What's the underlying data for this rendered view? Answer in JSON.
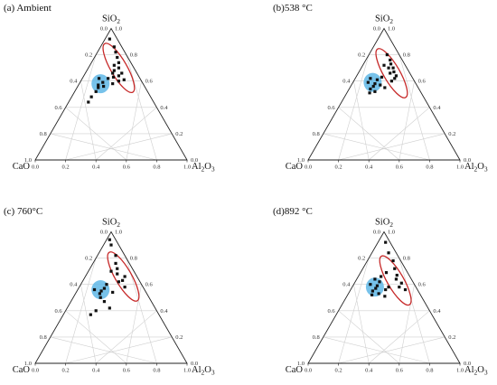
{
  "chart_data": [
    {
      "type": "scatter",
      "subtype": "ternary",
      "panel_label": "(a) Ambient",
      "axes": {
        "top": "SiO",
        "top_sub": "2",
        "left": "CaO",
        "left_sub": "",
        "right": "Al",
        "right_sub": "2",
        "right_mid": "O",
        "right_sub2": "3"
      },
      "tick_labels": [
        "0.0",
        "0.2",
        "0.4",
        "0.6",
        "0.8",
        "1.0"
      ],
      "points": [
        {
          "sio2": 0.92,
          "cao": 0.05,
          "al2o3": 0.03
        },
        {
          "sio2": 0.86,
          "cao": 0.05,
          "al2o3": 0.09
        },
        {
          "sio2": 0.82,
          "cao": 0.06,
          "al2o3": 0.12
        },
        {
          "sio2": 0.78,
          "cao": 0.07,
          "al2o3": 0.15
        },
        {
          "sio2": 0.74,
          "cao": 0.08,
          "al2o3": 0.18
        },
        {
          "sio2": 0.7,
          "cao": 0.1,
          "al2o3": 0.2
        },
        {
          "sio2": 0.66,
          "cao": 0.1,
          "al2o3": 0.24
        },
        {
          "sio2": 0.64,
          "cao": 0.13,
          "al2o3": 0.23
        },
        {
          "sio2": 0.68,
          "cao": 0.14,
          "al2o3": 0.18
        },
        {
          "sio2": 0.72,
          "cao": 0.12,
          "al2o3": 0.16
        },
        {
          "sio2": 0.61,
          "cao": 0.11,
          "al2o3": 0.28
        },
        {
          "sio2": 0.6,
          "cao": 0.15,
          "al2o3": 0.25
        },
        {
          "sio2": 0.62,
          "cao": 0.21,
          "al2o3": 0.17
        },
        {
          "sio2": 0.59,
          "cao": 0.26,
          "al2o3": 0.15
        },
        {
          "sio2": 0.56,
          "cao": 0.27,
          "al2o3": 0.17
        },
        {
          "sio2": 0.57,
          "cao": 0.3,
          "al2o3": 0.13
        },
        {
          "sio2": 0.62,
          "cao": 0.27,
          "al2o3": 0.11
        },
        {
          "sio2": 0.55,
          "cao": 0.31,
          "al2o3": 0.14
        },
        {
          "sio2": 0.52,
          "cao": 0.34,
          "al2o3": 0.14
        },
        {
          "sio2": 0.48,
          "cao": 0.39,
          "al2o3": 0.13
        },
        {
          "sio2": 0.44,
          "cao": 0.43,
          "al2o3": 0.13
        },
        {
          "sio2": 0.58,
          "cao": 0.2,
          "al2o3": 0.22
        },
        {
          "sio2": 0.63,
          "cao": 0.17,
          "al2o3": 0.2
        },
        {
          "sio2": 0.66,
          "cao": 0.16,
          "al2o3": 0.18
        }
      ],
      "blue_region": {
        "sio2": 0.58,
        "cao": 0.28,
        "al2o3": 0.14
      },
      "red_region": {
        "sio2": 0.7,
        "cao": 0.1,
        "al2o3": 0.2
      }
    },
    {
      "type": "scatter",
      "subtype": "ternary",
      "panel_label": "(b)538 °C",
      "axes": {
        "top": "SiO",
        "top_sub": "2",
        "left": "CaO",
        "left_sub": "",
        "right": "Al",
        "right_sub": "2",
        "right_mid": "O",
        "right_sub2": "3"
      },
      "tick_labels": [
        "0.0",
        "0.2",
        "0.4",
        "0.6",
        "0.8",
        "1.0"
      ],
      "points": [
        {
          "sio2": 0.8,
          "cao": 0.08,
          "al2o3": 0.12
        },
        {
          "sio2": 0.76,
          "cao": 0.08,
          "al2o3": 0.16
        },
        {
          "sio2": 0.73,
          "cao": 0.09,
          "al2o3": 0.18
        },
        {
          "sio2": 0.7,
          "cao": 0.09,
          "al2o3": 0.21
        },
        {
          "sio2": 0.67,
          "cao": 0.1,
          "al2o3": 0.23
        },
        {
          "sio2": 0.64,
          "cao": 0.1,
          "al2o3": 0.26
        },
        {
          "sio2": 0.62,
          "cao": 0.12,
          "al2o3": 0.26
        },
        {
          "sio2": 0.66,
          "cao": 0.13,
          "al2o3": 0.21
        },
        {
          "sio2": 0.7,
          "cao": 0.12,
          "al2o3": 0.18
        },
        {
          "sio2": 0.72,
          "cao": 0.14,
          "al2o3": 0.14
        },
        {
          "sio2": 0.6,
          "cao": 0.15,
          "al2o3": 0.25
        },
        {
          "sio2": 0.61,
          "cao": 0.24,
          "al2o3": 0.15
        },
        {
          "sio2": 0.58,
          "cao": 0.27,
          "al2o3": 0.15
        },
        {
          "sio2": 0.56,
          "cao": 0.29,
          "al2o3": 0.15
        },
        {
          "sio2": 0.59,
          "cao": 0.31,
          "al2o3": 0.1
        },
        {
          "sio2": 0.54,
          "cao": 0.32,
          "al2o3": 0.14
        },
        {
          "sio2": 0.57,
          "cao": 0.24,
          "al2o3": 0.19
        },
        {
          "sio2": 0.62,
          "cao": 0.28,
          "al2o3": 0.1
        },
        {
          "sio2": 0.52,
          "cao": 0.3,
          "al2o3": 0.18
        },
        {
          "sio2": 0.55,
          "cao": 0.22,
          "al2o3": 0.23
        },
        {
          "sio2": 0.51,
          "cao": 0.34,
          "al2o3": 0.15
        },
        {
          "sio2": 0.63,
          "cao": 0.2,
          "al2o3": 0.17
        }
      ],
      "blue_region": {
        "sio2": 0.59,
        "cao": 0.28,
        "al2o3": 0.13
      },
      "red_region": {
        "sio2": 0.66,
        "cao": 0.12,
        "al2o3": 0.22
      }
    },
    {
      "type": "scatter",
      "subtype": "ternary",
      "panel_label": "(c) 760°C",
      "axes": {
        "top": "SiO",
        "top_sub": "2",
        "left": "CaO",
        "left_sub": "",
        "right": "Al",
        "right_sub": "2",
        "right_mid": "O",
        "right_sub2": "3"
      },
      "tick_labels": [
        "0.0",
        "0.2",
        "0.4",
        "0.6",
        "0.8",
        "1.0"
      ],
      "points": [
        {
          "sio2": 0.94,
          "cao": 0.04,
          "al2o3": 0.02
        },
        {
          "sio2": 0.9,
          "cao": 0.05,
          "al2o3": 0.05
        },
        {
          "sio2": 0.82,
          "cao": 0.06,
          "al2o3": 0.12
        },
        {
          "sio2": 0.76,
          "cao": 0.09,
          "al2o3": 0.15
        },
        {
          "sio2": 0.72,
          "cao": 0.1,
          "al2o3": 0.18
        },
        {
          "sio2": 0.68,
          "cao": 0.12,
          "al2o3": 0.2
        },
        {
          "sio2": 0.66,
          "cao": 0.08,
          "al2o3": 0.26
        },
        {
          "sio2": 0.63,
          "cao": 0.11,
          "al2o3": 0.26
        },
        {
          "sio2": 0.62,
          "cao": 0.14,
          "al2o3": 0.24
        },
        {
          "sio2": 0.58,
          "cao": 0.12,
          "al2o3": 0.3
        },
        {
          "sio2": 0.6,
          "cao": 0.23,
          "al2o3": 0.17
        },
        {
          "sio2": 0.57,
          "cao": 0.26,
          "al2o3": 0.17
        },
        {
          "sio2": 0.55,
          "cao": 0.29,
          "al2o3": 0.16
        },
        {
          "sio2": 0.53,
          "cao": 0.31,
          "al2o3": 0.16
        },
        {
          "sio2": 0.56,
          "cao": 0.33,
          "al2o3": 0.11
        },
        {
          "sio2": 0.5,
          "cao": 0.32,
          "al2o3": 0.18
        },
        {
          "sio2": 0.54,
          "cao": 0.22,
          "al2o3": 0.24
        },
        {
          "sio2": 0.47,
          "cao": 0.31,
          "al2o3": 0.22
        },
        {
          "sio2": 0.4,
          "cao": 0.4,
          "al2o3": 0.2
        },
        {
          "sio2": 0.37,
          "cao": 0.45,
          "al2o3": 0.18
        },
        {
          "sio2": 0.42,
          "cao": 0.3,
          "al2o3": 0.28
        },
        {
          "sio2": 0.7,
          "cao": 0.15,
          "al2o3": 0.15
        }
      ],
      "blue_region": {
        "sio2": 0.56,
        "cao": 0.29,
        "al2o3": 0.15
      },
      "red_region": {
        "sio2": 0.66,
        "cao": 0.09,
        "al2o3": 0.25
      }
    },
    {
      "type": "scatter",
      "subtype": "ternary",
      "panel_label": "(d)892 °C",
      "axes": {
        "top": "SiO",
        "top_sub": "2",
        "left": "CaO",
        "left_sub": "",
        "right": "Al",
        "right_sub": "2",
        "right_mid": "O",
        "right_sub2": "3"
      },
      "tick_labels": [
        "0.0",
        "0.2",
        "0.4",
        "0.6",
        "0.8",
        "1.0"
      ],
      "points": [
        {
          "sio2": 0.92,
          "cao": 0.03,
          "al2o3": 0.05
        },
        {
          "sio2": 0.84,
          "cao": 0.05,
          "al2o3": 0.11
        },
        {
          "sio2": 0.78,
          "cao": 0.05,
          "al2o3": 0.17
        },
        {
          "sio2": 0.72,
          "cao": 0.07,
          "al2o3": 0.21
        },
        {
          "sio2": 0.67,
          "cao": 0.08,
          "al2o3": 0.25
        },
        {
          "sio2": 0.64,
          "cao": 0.1,
          "al2o3": 0.26
        },
        {
          "sio2": 0.61,
          "cao": 0.08,
          "al2o3": 0.31
        },
        {
          "sio2": 0.58,
          "cao": 0.11,
          "al2o3": 0.31
        },
        {
          "sio2": 0.56,
          "cao": 0.08,
          "al2o3": 0.36
        },
        {
          "sio2": 0.69,
          "cao": 0.14,
          "al2o3": 0.17
        },
        {
          "sio2": 0.62,
          "cao": 0.22,
          "al2o3": 0.16
        },
        {
          "sio2": 0.59,
          "cao": 0.25,
          "al2o3": 0.16
        },
        {
          "sio2": 0.57,
          "cao": 0.27,
          "al2o3": 0.16
        },
        {
          "sio2": 0.6,
          "cao": 0.29,
          "al2o3": 0.11
        },
        {
          "sio2": 0.55,
          "cao": 0.3,
          "al2o3": 0.15
        },
        {
          "sio2": 0.53,
          "cao": 0.27,
          "al2o3": 0.2
        },
        {
          "sio2": 0.56,
          "cao": 0.21,
          "al2o3": 0.23
        },
        {
          "sio2": 0.52,
          "cao": 0.32,
          "al2o3": 0.16
        },
        {
          "sio2": 0.64,
          "cao": 0.24,
          "al2o3": 0.12
        },
        {
          "sio2": 0.58,
          "cao": 0.18,
          "al2o3": 0.24
        },
        {
          "sio2": 0.51,
          "cao": 0.24,
          "al2o3": 0.25
        },
        {
          "sio2": 0.66,
          "cao": 0.19,
          "al2o3": 0.15
        }
      ],
      "blue_region": {
        "sio2": 0.58,
        "cao": 0.27,
        "al2o3": 0.15
      },
      "red_region": {
        "sio2": 0.63,
        "cao": 0.11,
        "al2o3": 0.26
      }
    }
  ],
  "colors": {
    "blue_region": "#5fb7e6",
    "red_region": "#c62828",
    "points": "#111111",
    "grid": "#cfcfcf"
  }
}
